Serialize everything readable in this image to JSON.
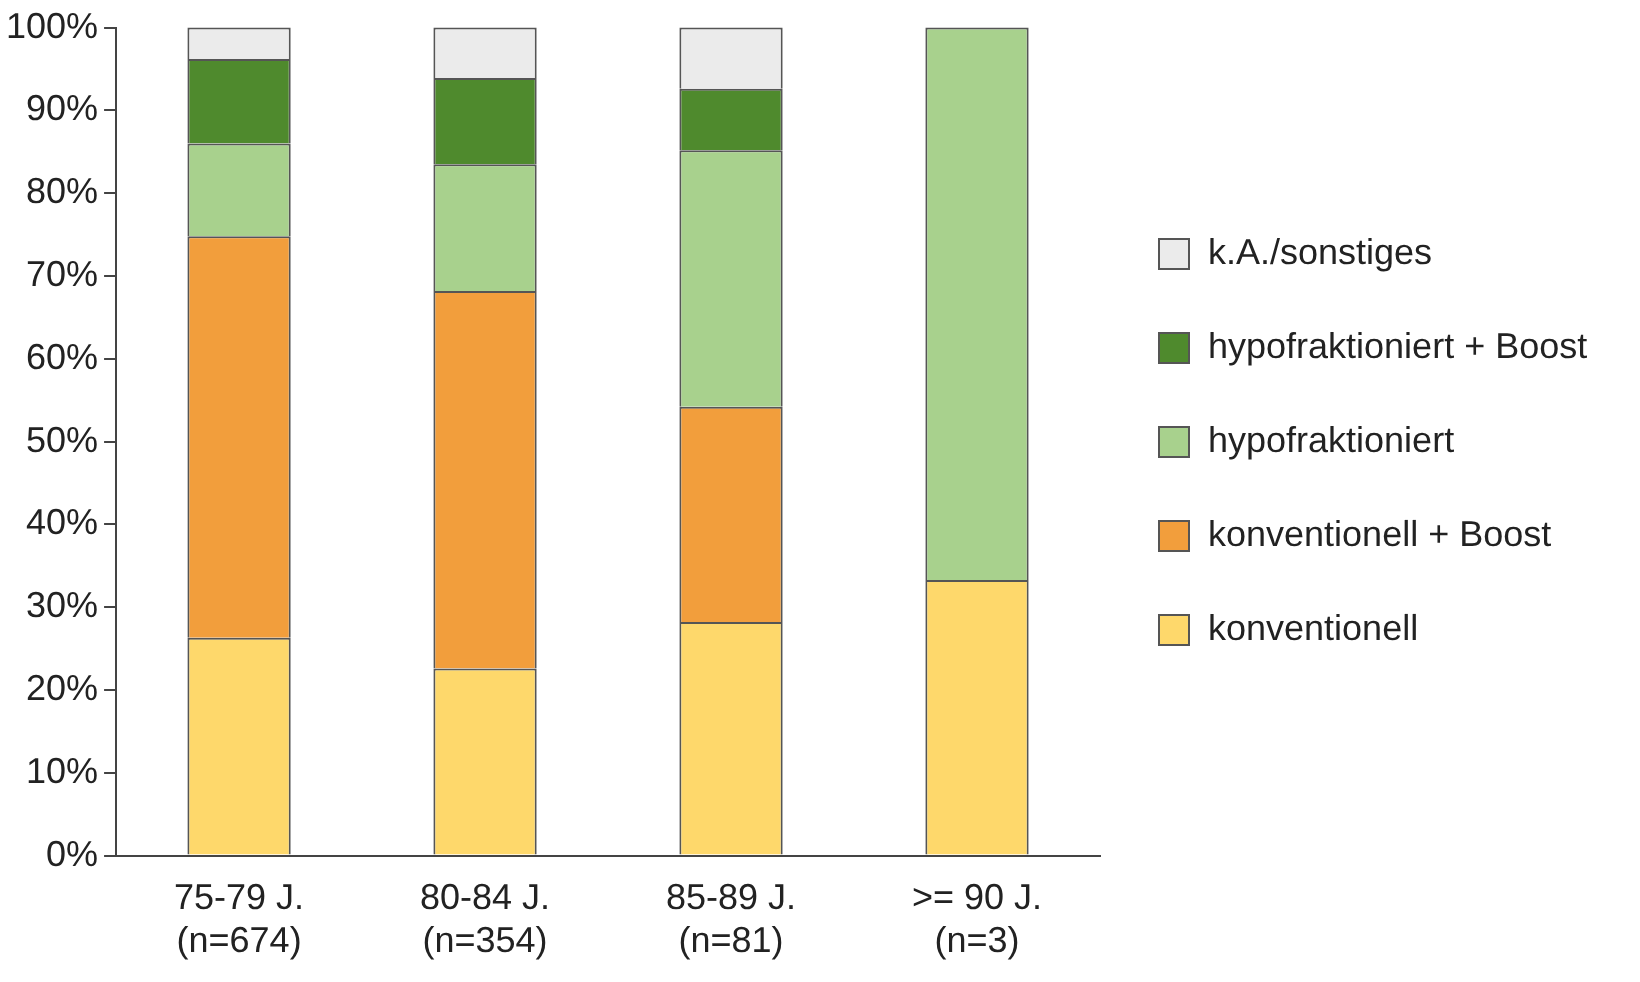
{
  "chart_data": {
    "type": "bar",
    "stacked": true,
    "categories": [
      "75-79 J.\n(n=674)",
      "80-84 J.\n(n=354)",
      "85-89 J.\n(n=81)",
      ">= 90 J.\n(n=3)"
    ],
    "series": [
      {
        "name": "konventionell",
        "color": "#fed86b",
        "values": [
          26.3,
          22.6,
          28.2,
          33.3
        ]
      },
      {
        "name": "konventionell + Boost",
        "color": "#f29e3c",
        "values": [
          48.5,
          45.6,
          26.0,
          0
        ]
      },
      {
        "name": "hypofraktioniert",
        "color": "#a8d18d",
        "values": [
          11.2,
          15.3,
          31.0,
          66.7
        ]
      },
      {
        "name": "hypofraktioniert + Boost",
        "color": "#4f8a2d",
        "values": [
          10.2,
          10.4,
          7.4,
          0
        ]
      },
      {
        "name": "k.A./sonstiges",
        "color": "#ebebeb",
        "values": [
          3.8,
          6.1,
          7.4,
          0
        ]
      }
    ],
    "ylim": [
      0,
      100
    ],
    "yticks": [
      {
        "value": 0,
        "label": "0%"
      },
      {
        "value": 10,
        "label": "10%"
      },
      {
        "value": 20,
        "label": "20%"
      },
      {
        "value": 30,
        "label": "30%"
      },
      {
        "value": 40,
        "label": "40%"
      },
      {
        "value": 50,
        "label": "50%"
      },
      {
        "value": 60,
        "label": "60%"
      },
      {
        "value": 70,
        "label": "70%"
      },
      {
        "value": 80,
        "label": "80%"
      },
      {
        "value": 90,
        "label": "90%"
      },
      {
        "value": 100,
        "label": "100%"
      }
    ],
    "grid": false,
    "legend": "right"
  }
}
